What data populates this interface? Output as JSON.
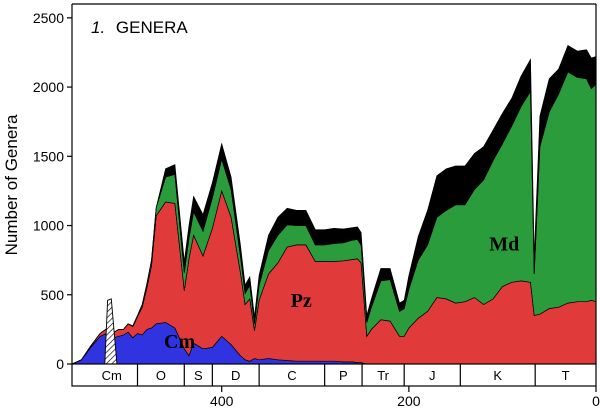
{
  "chart_data": {
    "type": "area",
    "stacked": true,
    "panel_number": "1.",
    "title": "GENERA",
    "ylabel": "Number of Genera",
    "xlabel": "",
    "x_reversed": true,
    "xlim": [
      0,
      560
    ],
    "ylim": [
      0,
      2600
    ],
    "x_ticks": [
      400,
      200,
      0
    ],
    "y_ticks": [
      0,
      500,
      1000,
      1500,
      2000,
      2500
    ],
    "x": [
      560,
      550,
      540,
      530,
      520,
      515,
      510,
      505,
      500,
      495,
      490,
      485,
      480,
      475,
      470,
      460,
      450,
      440,
      435,
      430,
      420,
      410,
      400,
      390,
      380,
      375,
      370,
      365,
      360,
      350,
      340,
      330,
      320,
      310,
      300,
      290,
      280,
      270,
      260,
      255,
      251,
      245,
      240,
      230,
      220,
      210,
      205,
      200,
      190,
      180,
      170,
      160,
      150,
      140,
      130,
      120,
      110,
      100,
      90,
      80,
      70,
      66,
      60,
      50,
      40,
      30,
      20,
      10,
      5,
      0
    ],
    "series": [
      {
        "name": "Cm",
        "color": "#2f33e0",
        "values": [
          0,
          30,
          120,
          200,
          230,
          190,
          200,
          210,
          230,
          190,
          220,
          210,
          250,
          260,
          290,
          300,
          260,
          110,
          60,
          150,
          110,
          120,
          200,
          140,
          60,
          30,
          20,
          40,
          30,
          40,
          30,
          25,
          20,
          20,
          20,
          20,
          20,
          15,
          15,
          10,
          10,
          0,
          0,
          0,
          0,
          0,
          0,
          0,
          0,
          0,
          0,
          0,
          0,
          0,
          0,
          0,
          0,
          0,
          0,
          0,
          0,
          0,
          0,
          0,
          0,
          0,
          0,
          0,
          0,
          0
        ]
      },
      {
        "name": "Pz",
        "color": "#e03a3a",
        "values": [
          0,
          0,
          10,
          20,
          40,
          40,
          50,
          40,
          60,
          80,
          120,
          200,
          300,
          450,
          780,
          870,
          900,
          420,
          700,
          780,
          670,
          860,
          1050,
          920,
          600,
          400,
          450,
          200,
          430,
          610,
          700,
          820,
          840,
          840,
          720,
          720,
          720,
          730,
          740,
          750,
          720,
          200,
          250,
          320,
          310,
          200,
          200,
          260,
          330,
          380,
          480,
          470,
          440,
          450,
          480,
          430,
          470,
          560,
          590,
          600,
          590,
          350,
          360,
          400,
          410,
          440,
          450,
          450,
          460,
          450
        ]
      },
      {
        "name": "Md",
        "color": "#2a9c3c",
        "values": [
          0,
          0,
          0,
          0,
          0,
          0,
          0,
          0,
          0,
          5,
          10,
          20,
          30,
          40,
          60,
          180,
          210,
          130,
          150,
          170,
          180,
          220,
          230,
          200,
          120,
          80,
          100,
          50,
          110,
          170,
          200,
          160,
          140,
          140,
          120,
          120,
          130,
          130,
          140,
          140,
          130,
          100,
          160,
          280,
          300,
          180,
          200,
          280,
          420,
          480,
          580,
          640,
          710,
          700,
          780,
          900,
          1000,
          1030,
          1130,
          1260,
          1380,
          300,
          1210,
          1420,
          1540,
          1670,
          1620,
          1610,
          1530,
          1570
        ]
      },
      {
        "name": "",
        "color": "#000000",
        "values": [
          0,
          0,
          0,
          0,
          0,
          0,
          0,
          0,
          0,
          0,
          0,
          0,
          0,
          0,
          0,
          60,
          70,
          80,
          90,
          110,
          120,
          110,
          110,
          90,
          80,
          60,
          60,
          50,
          70,
          110,
          130,
          120,
          110,
          110,
          110,
          110,
          110,
          100,
          90,
          90,
          90,
          50,
          60,
          90,
          80,
          60,
          60,
          100,
          170,
          250,
          300,
          300,
          280,
          280,
          260,
          240,
          220,
          220,
          200,
          220,
          230,
          120,
          220,
          240,
          180,
          190,
          190,
          210,
          220,
          200
        ]
      }
    ],
    "hatched_spike": {
      "x": [
        525,
        522,
        518,
        512
      ],
      "top": [
        0,
        460,
        470,
        0
      ]
    },
    "fauna_labels": [
      {
        "text": "Cm",
        "x": 445,
        "y": 115,
        "series": "Cm"
      },
      {
        "text": "Pz",
        "x": 315,
        "y": 410,
        "series": "Pz"
      },
      {
        "text": "Md",
        "x": 98,
        "y": 820,
        "series": "Md"
      }
    ],
    "periods": [
      {
        "label": "Cm",
        "start": 545,
        "end": 490
      },
      {
        "label": "O",
        "start": 490,
        "end": 440
      },
      {
        "label": "S",
        "start": 440,
        "end": 410
      },
      {
        "label": "D",
        "start": 410,
        "end": 360
      },
      {
        "label": "C",
        "start": 360,
        "end": 290
      },
      {
        "label": "P",
        "start": 290,
        "end": 250
      },
      {
        "label": "Tr",
        "start": 250,
        "end": 205
      },
      {
        "label": "J",
        "start": 205,
        "end": 145
      },
      {
        "label": "K",
        "start": 145,
        "end": 65
      },
      {
        "label": "T",
        "start": 65,
        "end": 0
      }
    ]
  }
}
